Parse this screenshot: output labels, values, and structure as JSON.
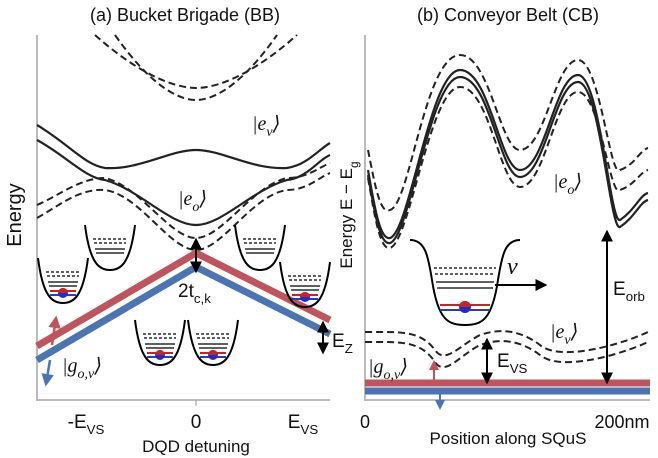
{
  "panel_a": {
    "title": "(a) Bucket Brigade (BB)",
    "y_label": {
      "text": "Energy"
    },
    "x_label": {
      "text": "DQD detuning"
    },
    "x_ticks": [
      {
        "text": "-E",
        "sub": "VS"
      },
      {
        "text": "0"
      },
      {
        "text": "E",
        "sub": "VS"
      }
    ],
    "ket_ev": {
      "text": "|e",
      "sub": "v",
      "end": "⟩"
    },
    "ket_eo": {
      "text": "|e",
      "sub": "o",
      "end": "⟩"
    },
    "ket_g": {
      "text": "|g",
      "sub": "o,v",
      "end": "⟩"
    },
    "tunnel": {
      "text": "2t",
      "sub": "c,k"
    },
    "zeeman": {
      "text": "E",
      "sub": "Z"
    }
  },
  "panel_b": {
    "title": "(b) Conveyor Belt (CB)",
    "y_label": {
      "text": "Energy E − E",
      "sub": "g"
    },
    "x_label": {
      "text": "Position along SQuS"
    },
    "x_ticks": [
      {
        "text": "0"
      },
      {
        "text": "200nm"
      }
    ],
    "ket_eo": {
      "text": "|e",
      "sub": "o",
      "end": "⟩"
    },
    "ket_ev": {
      "text": "|e",
      "sub": "v",
      "end": "⟩"
    },
    "ket_g": {
      "text": "|g",
      "sub": "o,v",
      "end": "⟩"
    },
    "velocity": {
      "text": "v"
    },
    "orbital": {
      "text": "E",
      "sub": "orb"
    },
    "valley": {
      "text": "E",
      "sub": "VS"
    }
  }
}
